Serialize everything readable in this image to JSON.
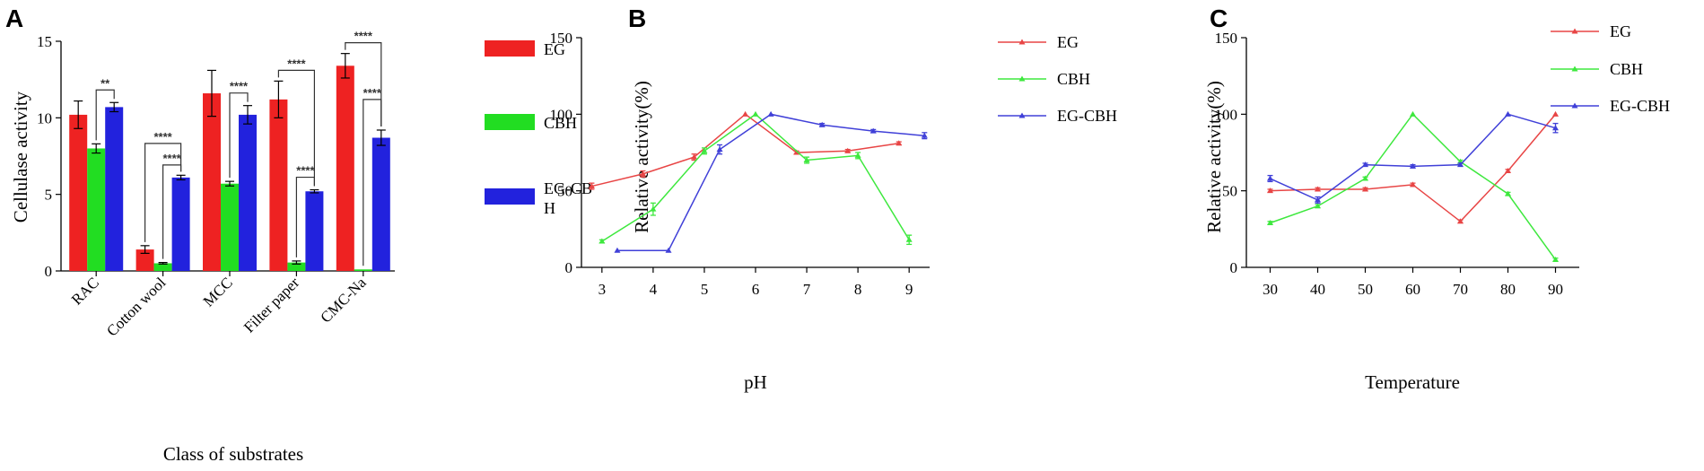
{
  "colors": {
    "EG": "#ee2222",
    "CBH": "#22dd22",
    "EG-CBH": "#2222dd",
    "EG_line": "#e84545",
    "CBH_line": "#3ee83e",
    "EGCBH_line": "#4040d8"
  },
  "chart_data": [
    {
      "panel": "A",
      "type": "bar",
      "title": "",
      "xlabel": "Class of substrates",
      "ylabel": "Cellulase activity",
      "ylim": [
        0,
        15
      ],
      "yticks": [
        "0",
        "5",
        "10",
        "15"
      ],
      "categories": [
        "RAC",
        "Cotton wool",
        "MCC",
        "Filter paper",
        "CMC-Na"
      ],
      "series": [
        {
          "name": "EG",
          "legend": "EG",
          "values": [
            10.2,
            1.4,
            11.6,
            11.2,
            13.4
          ],
          "errors": [
            0.9,
            0.25,
            1.5,
            1.2,
            0.8
          ]
        },
        {
          "name": "CBH",
          "legend": "CBH",
          "values": [
            8.0,
            0.5,
            5.7,
            0.55,
            0.1
          ],
          "errors": [
            0.3,
            0.05,
            0.15,
            0.1,
            0.0
          ]
        },
        {
          "name": "EG-CBH",
          "legend": "EG-CB H",
          "values": [
            10.7,
            6.1,
            10.2,
            5.2,
            8.7
          ],
          "errors": [
            0.3,
            0.15,
            0.6,
            0.1,
            0.5
          ]
        }
      ],
      "significance": [
        {
          "label": "**",
          "cat": 0,
          "from": "CBH",
          "to": "EG-CBH"
        },
        {
          "label": "****",
          "cat": 1,
          "from": "EG",
          "to": "EG-CBH"
        },
        {
          "label": "****",
          "cat": 1,
          "from": "CBH",
          "to": "EG-CBH"
        },
        {
          "label": "****",
          "cat": 2,
          "from": "CBH",
          "to": "EG-CBH"
        },
        {
          "label": "****",
          "cat": 3,
          "from": "EG",
          "to": "EG-CBH"
        },
        {
          "label": "****",
          "cat": 3,
          "from": "CBH",
          "to": "EG-CBH"
        },
        {
          "label": "****",
          "cat": 4,
          "from": "EG",
          "to": "EG-CBH"
        },
        {
          "label": "****",
          "cat": 4,
          "from": "CBH",
          "to": "EG-CBH"
        }
      ]
    },
    {
      "panel": "B",
      "type": "line",
      "title": "",
      "xlabel": "pH",
      "ylabel": "Relative activity(%)",
      "xlim": [
        2.6,
        9.4
      ],
      "ylim": [
        0,
        150
      ],
      "xticks": [
        "3",
        "4",
        "5",
        "6",
        "7",
        "8",
        "9"
      ],
      "yticks": [
        "0",
        "50",
        "100",
        "150"
      ],
      "series": [
        {
          "name": "EG",
          "x": [
            2.8,
            3.8,
            4.8,
            5.8,
            6.8,
            7.8,
            8.8
          ],
          "y": [
            53,
            61,
            72,
            100,
            75,
            76,
            81
          ],
          "errors": [
            2,
            2,
            2,
            0,
            1,
            1,
            1
          ]
        },
        {
          "name": "CBH",
          "x": [
            3.0,
            4.0,
            5.0,
            6.0,
            7.0,
            8.0,
            9.0
          ],
          "y": [
            17,
            38,
            76,
            100,
            70,
            73,
            18
          ],
          "errors": [
            1,
            4,
            2,
            0,
            2,
            2,
            3
          ]
        },
        {
          "name": "EG-CBH",
          "x": [
            3.3,
            4.3,
            5.3,
            6.3,
            7.3,
            8.3,
            9.3
          ],
          "y": [
            11,
            11,
            77,
            100,
            93,
            89,
            86
          ],
          "errors": [
            0,
            0,
            3,
            0,
            1,
            1,
            2
          ]
        }
      ]
    },
    {
      "panel": "C",
      "type": "line",
      "title": "",
      "xlabel": "Temperature",
      "ylabel": "Relative activity(%)",
      "xlim": [
        25,
        95
      ],
      "ylim": [
        0,
        150
      ],
      "xticks": [
        "30",
        "40",
        "50",
        "60",
        "70",
        "80",
        "90"
      ],
      "yticks": [
        "0",
        "50",
        "100",
        "150"
      ],
      "series": [
        {
          "name": "EG",
          "x": [
            30,
            40,
            50,
            60,
            70,
            80,
            90
          ],
          "y": [
            50,
            51,
            51,
            54,
            30,
            63,
            100
          ],
          "errors": [
            1,
            1,
            1,
            1,
            1,
            1,
            0
          ]
        },
        {
          "name": "CBH",
          "x": [
            30,
            40,
            50,
            60,
            70,
            80,
            90
          ],
          "y": [
            29,
            40,
            58,
            100,
            69,
            48,
            5
          ],
          "errors": [
            1,
            1,
            1,
            0,
            1,
            1,
            1
          ]
        },
        {
          "name": "EG-CBH",
          "x": [
            30,
            40,
            50,
            60,
            70,
            80,
            90
          ],
          "y": [
            58,
            44,
            67,
            66,
            67,
            100,
            91
          ],
          "errors": [
            2,
            2,
            1,
            1,
            1,
            0,
            3
          ]
        }
      ]
    }
  ],
  "panels": {
    "A": {
      "letter": "A",
      "xlabel": "Class of substrates",
      "ylabel": "Cellulase activity",
      "legend": [
        "EG",
        "CBH",
        "EG-CB",
        "H"
      ]
    },
    "B": {
      "letter": "B",
      "xlabel": "pH",
      "ylabel": "Relative activity(%)",
      "legend": [
        "EG",
        "CBH",
        "EG-CBH"
      ]
    },
    "C": {
      "letter": "C",
      "xlabel": "Temperature",
      "ylabel": "Relative activity(%)",
      "legend": [
        "EG",
        "CBH",
        "EG-CBH"
      ]
    }
  }
}
